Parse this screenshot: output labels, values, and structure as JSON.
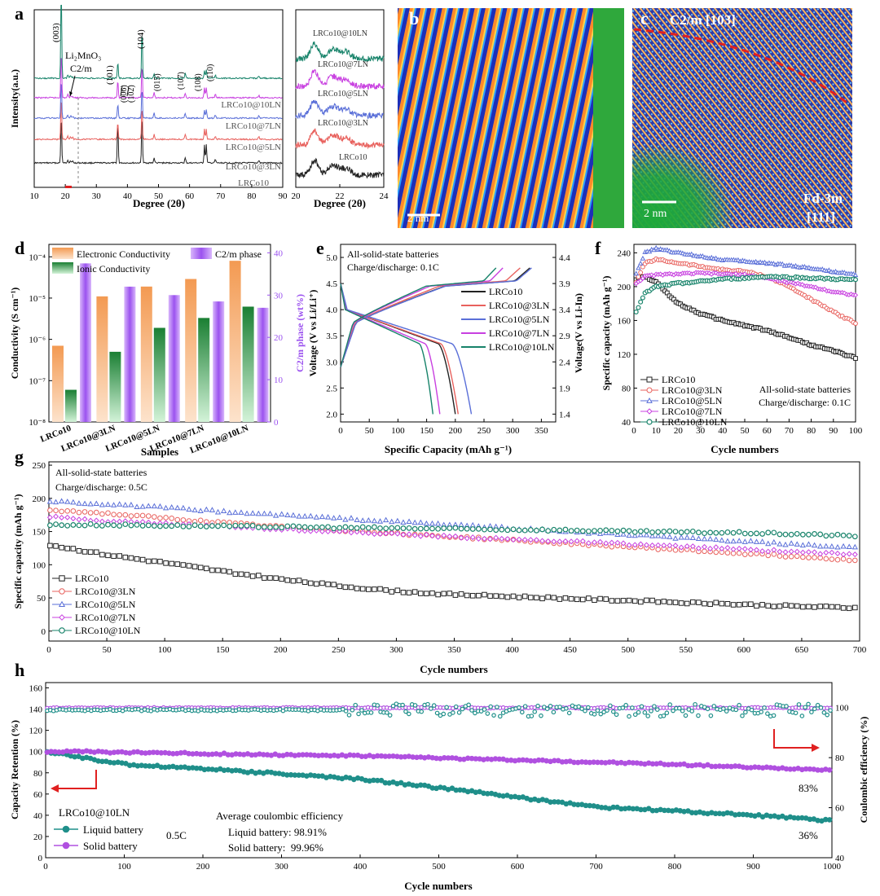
{
  "figure": {
    "panel_labels": [
      "a",
      "b",
      "c",
      "d",
      "e",
      "f",
      "g",
      "h"
    ]
  },
  "colors": {
    "LRCo10": "#222222",
    "LRCo10@3LN": "#e8615d",
    "LRCo10@5LN": "#5a6fd8",
    "LRCo10@7LN": "#c840e0",
    "LRCo10@10LN": "#17836a",
    "electronic_bar": "#f5a05a",
    "ionic_bar": "#1e8a3a",
    "c2m_bar": "#a868f0",
    "liquid": "#1f8f8a",
    "solid": "#b050e0",
    "arrow_red": "#e02020"
  },
  "chart_data": [
    {
      "panel": "a",
      "type": "line",
      "xlabel": "Degree (2θ)",
      "ylabel": "Intensity(a.u.)",
      "xlim": [
        10,
        90
      ],
      "xticks": [
        "10",
        "20",
        "30",
        "40",
        "50",
        "60",
        "70",
        "80",
        "90"
      ],
      "series": [
        {
          "name": "LRCo10",
          "peaks": [
            [
              18.7,
              60
            ],
            [
              36.9,
              52
            ],
            [
              44.7,
              62
            ],
            [
              64.8,
              22
            ],
            [
              65.4,
              22
            ]
          ]
        },
        {
          "name": "LRCo10@3LN",
          "peaks": [
            [
              18.7,
              55
            ],
            [
              36.9,
              22
            ],
            [
              44.7,
              42
            ],
            [
              64.8,
              12
            ],
            [
              65.4,
              12
            ]
          ]
        },
        {
          "name": "LRCo10@5LN",
          "peaks": [
            [
              18.7,
              50
            ],
            [
              36.9,
              18
            ],
            [
              44.7,
              38
            ],
            [
              64.8,
              10
            ],
            [
              65.4,
              10
            ]
          ]
        },
        {
          "name": "LRCo10@7LN",
          "peaks": [
            [
              18.7,
              60
            ],
            [
              36.9,
              22
            ],
            [
              44.7,
              42
            ],
            [
              64.8,
              12
            ],
            [
              65.4,
              12
            ]
          ]
        },
        {
          "name": "LRCo10@10LN",
          "peaks": [
            [
              18.7,
              110
            ],
            [
              36.9,
              20
            ],
            [
              44.7,
              62
            ],
            [
              64.8,
              10
            ],
            [
              65.4,
              10
            ]
          ]
        }
      ],
      "annotations": [
        "(003)",
        "Li₂MnO₃",
        "C2/m",
        "(101)",
        "(006)",
        "(102)",
        "(104)",
        "(015)",
        "(107)",
        "(108)",
        "(110)"
      ]
    },
    {
      "panel": "a-inset",
      "type": "line",
      "xlabel": "Degree (2θ)",
      "xlim": [
        20,
        24
      ],
      "xticks": [
        "20",
        "22",
        "24"
      ],
      "series_labels": [
        "LRCo10@10LN",
        "LRCo10@7LN",
        "LRCo10@5LN",
        "LRCo10@3LN",
        "LRCo10"
      ]
    },
    {
      "panel": "b",
      "type": "image",
      "scale_bar": "2 nm"
    },
    {
      "panel": "c",
      "type": "image",
      "labels": [
        "C2/m [103]",
        "Fd-3m",
        "[111]"
      ],
      "scale_bar": "2 nm"
    },
    {
      "panel": "d",
      "type": "bar",
      "xlabel": "Samples",
      "ylabel": "Conductivity (S cm⁻¹)",
      "ylabel_right": "C2/m phase (wt%)",
      "yscale": "log",
      "ylim": [
        1e-08,
        0.0002
      ],
      "ylim_right": [
        0,
        42
      ],
      "yticks": [
        "10⁻⁸",
        "10⁻⁷",
        "10⁻⁶",
        "10⁻⁵",
        "10⁻⁴"
      ],
      "yticks_right": [
        "0",
        "10",
        "20",
        "30",
        "40"
      ],
      "categories": [
        "LRCo10",
        "LRCo10@3LN",
        "LRCo10@5LN",
        "LRCo10@7LN",
        "LRCo10@10LN"
      ],
      "series": [
        {
          "name": "Electronic Conductivity",
          "axis": "left",
          "values": [
            7e-07,
            1.1e-05,
            1.9e-05,
            2.9e-05,
            8e-05
          ]
        },
        {
          "name": "Ionic Conductivity",
          "axis": "left",
          "values": [
            6e-08,
            5e-07,
            1.9e-06,
            3.3e-06,
            6.2e-06
          ]
        },
        {
          "name": "C2/m phase",
          "axis": "right",
          "values": [
            37.5,
            32,
            30,
            28.5,
            27
          ]
        }
      ]
    },
    {
      "panel": "e",
      "type": "line",
      "xlabel": "Specific Capacity (mAh g⁻¹)",
      "ylabel": "Voltage (V vs Li/Li⁺)",
      "ylabel_right": "Voltage(V vs Li-In)",
      "xlim": [
        0,
        375
      ],
      "ylim": [
        1.85,
        5.25
      ],
      "xticks": [
        "0",
        "50",
        "100",
        "150",
        "200",
        "250",
        "300",
        "350"
      ],
      "yticks": [
        "2.0",
        "2.5",
        "3.0",
        "3.5",
        "4.0",
        "4.5",
        "5.0"
      ],
      "yticks_right": [
        "1.4",
        "1.9",
        "2.4",
        "2.9",
        "3.4",
        "3.9",
        "4.4"
      ],
      "annotation": [
        "All-solid-state batteries",
        "Charge/discharge: 0.1C"
      ],
      "series": [
        {
          "name": "LRCo10",
          "charge_end": 330,
          "discharge_end": 200
        },
        {
          "name": "LRCo10@3LN",
          "charge_end": 313,
          "discharge_end": 205
        },
        {
          "name": "LRCo10@5LN",
          "charge_end": 333,
          "discharge_end": 228
        },
        {
          "name": "LRCo10@7LN",
          "charge_end": 283,
          "discharge_end": 173
        },
        {
          "name": "LRCo10@10LN",
          "charge_end": 271,
          "discharge_end": 161
        }
      ]
    },
    {
      "panel": "f",
      "type": "line",
      "xlabel": "Cycle numbers",
      "ylabel": "Specific capacity (mAh g⁻¹)",
      "xlim": [
        0,
        100
      ],
      "ylim": [
        40,
        250
      ],
      "xticks": [
        "0",
        "10",
        "20",
        "30",
        "40",
        "50",
        "60",
        "70",
        "80",
        "90",
        "100"
      ],
      "yticks": [
        "40",
        "80",
        "120",
        "160",
        "200",
        "240"
      ],
      "annotation": [
        "All-solid-state batteries",
        "Charge/discharge: 0.1C"
      ],
      "series": [
        {
          "name": "LRCo10",
          "x": [
            0,
            5,
            10,
            20,
            30,
            40,
            50,
            60,
            70,
            80,
            90,
            100
          ],
          "y": [
            208,
            212,
            205,
            180,
            168,
            160,
            154,
            148,
            140,
            131,
            124,
            116
          ]
        },
        {
          "name": "LRCo10@3LN",
          "x": [
            0,
            5,
            10,
            20,
            30,
            40,
            50,
            60,
            70,
            80,
            90,
            100
          ],
          "y": [
            200,
            228,
            232,
            228,
            224,
            220,
            218,
            212,
            200,
            185,
            170,
            157
          ]
        },
        {
          "name": "LRCo10@5LN",
          "x": [
            0,
            5,
            10,
            20,
            30,
            40,
            50,
            60,
            70,
            80,
            90,
            100
          ],
          "y": [
            210,
            240,
            245,
            240,
            236,
            232,
            230,
            228,
            225,
            222,
            218,
            214
          ]
        },
        {
          "name": "LRCo10@7LN",
          "x": [
            0,
            5,
            10,
            20,
            30,
            40,
            50,
            60,
            70,
            80,
            90,
            100
          ],
          "y": [
            202,
            212,
            214,
            215,
            216,
            215,
            214,
            210,
            205,
            200,
            194,
            190
          ]
        },
        {
          "name": "LRCo10@10LN",
          "x": [
            0,
            5,
            10,
            20,
            30,
            40,
            50,
            60,
            70,
            80,
            90,
            100
          ],
          "y": [
            165,
            192,
            200,
            204,
            206,
            209,
            210,
            212,
            211,
            210,
            209,
            208
          ]
        }
      ]
    },
    {
      "panel": "g",
      "type": "line",
      "xlabel": "Cycle numbers",
      "ylabel": "Specific capacity (mAh g⁻¹)",
      "xlim": [
        0,
        700
      ],
      "ylim": [
        -15,
        255
      ],
      "xticks": [
        "0",
        "50",
        "100",
        "150",
        "200",
        "250",
        "300",
        "350",
        "400",
        "450",
        "500",
        "550",
        "600",
        "650",
        "700"
      ],
      "yticks": [
        "0",
        "50",
        "100",
        "150",
        "200",
        "250"
      ],
      "annotation": [
        "All-solid-state batteries",
        "Charge/discharge: 0.5C"
      ],
      "series": [
        {
          "name": "LRCo10",
          "x": [
            0,
            50,
            100,
            150,
            200,
            250,
            300,
            350,
            400,
            450,
            500,
            550,
            600,
            650,
            700
          ],
          "y": [
            130,
            115,
            103,
            90,
            78,
            68,
            60,
            55,
            52,
            49,
            46,
            43,
            40,
            37,
            35
          ]
        },
        {
          "name": "LRCo10@3LN",
          "x": [
            0,
            50,
            100,
            150,
            200,
            250,
            300,
            350,
            400,
            450,
            500,
            550,
            600,
            650,
            700
          ],
          "y": [
            183,
            177,
            170,
            163,
            157,
            152,
            147,
            142,
            137,
            132,
            127,
            122,
            117,
            112,
            107
          ]
        },
        {
          "name": "LRCo10@5LN",
          "x": [
            0,
            50,
            100,
            150,
            200,
            250,
            300,
            350,
            400,
            450,
            500,
            550,
            600,
            650,
            700
          ],
          "y": [
            196,
            191,
            186,
            180,
            175,
            170,
            165,
            160,
            155,
            150,
            145,
            140,
            135,
            130,
            125
          ]
        },
        {
          "name": "LRCo10@7LN",
          "x": [
            0,
            50,
            100,
            150,
            200,
            250,
            300,
            350,
            400,
            450,
            500,
            550,
            600,
            650,
            700
          ],
          "y": [
            172,
            166,
            162,
            158,
            154,
            150,
            146,
            142,
            138,
            135,
            131,
            127,
            123,
            119,
            115
          ]
        },
        {
          "name": "LRCo10@10LN",
          "x": [
            0,
            50,
            100,
            150,
            200,
            250,
            300,
            350,
            400,
            450,
            500,
            550,
            600,
            650,
            700
          ],
          "y": [
            160,
            160,
            159,
            158,
            157,
            156,
            155,
            154,
            153,
            152,
            150,
            149,
            148,
            146,
            143
          ]
        }
      ]
    },
    {
      "panel": "h",
      "type": "line",
      "xlabel": "Cycle numbers",
      "ylabel": "Capacity Retention (%)",
      "ylabel_right": "Coulombic efficiency (%)",
      "xlim": [
        0,
        1000
      ],
      "ylim": [
        0,
        165
      ],
      "ylim_right": [
        40,
        110
      ],
      "xticks": [
        "0",
        "100",
        "200",
        "300",
        "400",
        "500",
        "600",
        "700",
        "800",
        "900",
        "1000"
      ],
      "yticks": [
        "0",
        "20",
        "40",
        "60",
        "80",
        "100",
        "120",
        "140",
        "160"
      ],
      "yticks_right": [
        "40",
        "60",
        "80",
        "100"
      ],
      "legend_title": "LRCo10@10LN",
      "rate_label": "0.5C",
      "avg_title": "Average coulombic efficiency",
      "avg_lines": [
        "Liquid battery: 98.91%",
        "Solid battery:  99.96%"
      ],
      "end_labels": [
        "83%",
        "36%"
      ],
      "series": [
        {
          "name": "Liquid battery",
          "x": [
            0,
            50,
            100,
            150,
            200,
            300,
            400,
            500,
            600,
            700,
            800,
            900,
            1000
          ],
          "y": [
            100,
            94,
            88,
            86,
            84,
            79,
            74,
            66,
            57,
            48,
            44,
            40,
            35
          ]
        },
        {
          "name": "Solid battery",
          "x": [
            0,
            50,
            100,
            150,
            200,
            300,
            400,
            500,
            600,
            700,
            800,
            900,
            1000
          ],
          "y": [
            100,
            100,
            99,
            99,
            98,
            97,
            96,
            94,
            92,
            90,
            88,
            85,
            83
          ]
        }
      ]
    }
  ]
}
